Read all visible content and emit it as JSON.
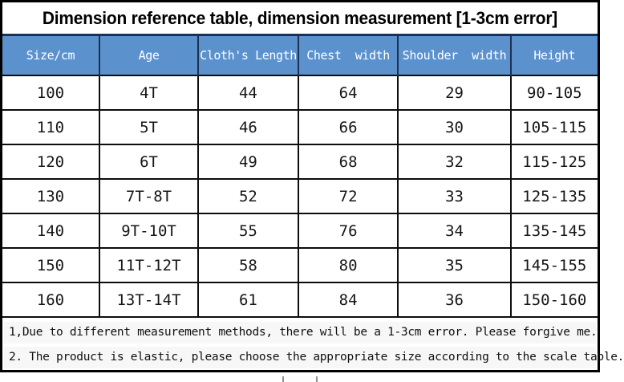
{
  "title": "Dimension reference table, dimension measurement [1-3cm error]",
  "colors": {
    "header_bg": "#5b92ce",
    "header_divider": "#1c3150",
    "grid_line": "#0d0d0d",
    "note_band_bg": "#f7f7f7"
  },
  "table": {
    "columns": [
      "Size/cm",
      "Age",
      "Cloth's Length",
      "Chest  width",
      "Shoulder  width",
      "Height"
    ],
    "rows": [
      [
        "100",
        "4T",
        "44",
        "64",
        "29",
        "90-105"
      ],
      [
        "110",
        "5T",
        "46",
        "66",
        "30",
        "105-115"
      ],
      [
        "120",
        "6T",
        "49",
        "68",
        "32",
        "115-125"
      ],
      [
        "130",
        "7T-8T",
        "52",
        "72",
        "33",
        "125-135"
      ],
      [
        "140",
        "9T-10T",
        "55",
        "76",
        "34",
        "135-145"
      ],
      [
        "150",
        "11T-12T",
        "58",
        "80",
        "35",
        "145-155"
      ],
      [
        "160",
        "13T-14T",
        "61",
        "84",
        "36",
        "150-160"
      ]
    ]
  },
  "notes": [
    "1,Due to different measurement methods, there will be a 1-3cm error. Please forgive me.",
    "2. The product is elastic, please choose the appropriate size according to the scale table."
  ]
}
